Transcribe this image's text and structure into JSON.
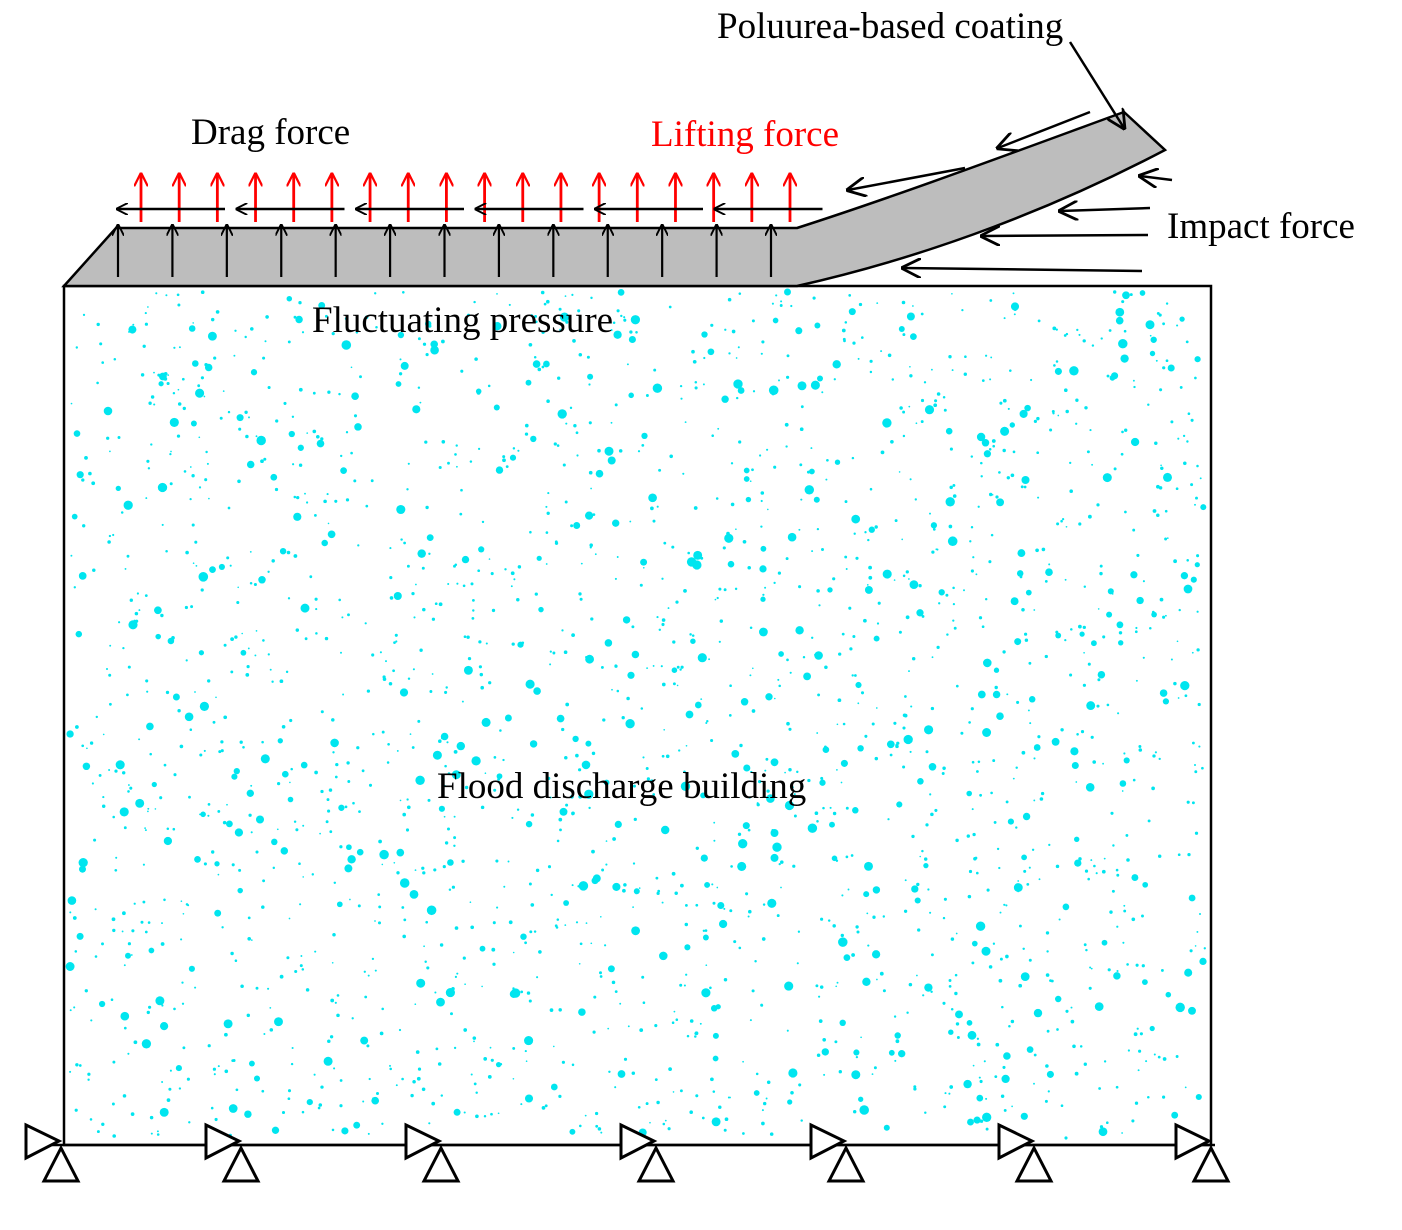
{
  "labels": {
    "coating": "Poluurea-based coating",
    "drag": "Drag force",
    "lifting": "Lifting force",
    "impact": "Impact force",
    "fluctuating": "Fluctuating pressure",
    "building": "Flood discharge building"
  },
  "colors": {
    "concrete_speckle": "#00e5ef",
    "coating_fill": "#bdbdbd",
    "lifting_arrow": "#ff0000",
    "drag_arrow": "#000000",
    "pressure_arrow": "#000000",
    "impact_arrow": "#000000",
    "outline": "#000000",
    "lifting_label": "#ff0000",
    "text": "#000000"
  },
  "icons": {
    "support": "pinned-roller-support-icon"
  },
  "counts": {
    "lifting_arrows": 18,
    "drag_arrows": 6,
    "pressure_arrows": 13,
    "impact_arrows": 6,
    "supports": 7
  }
}
